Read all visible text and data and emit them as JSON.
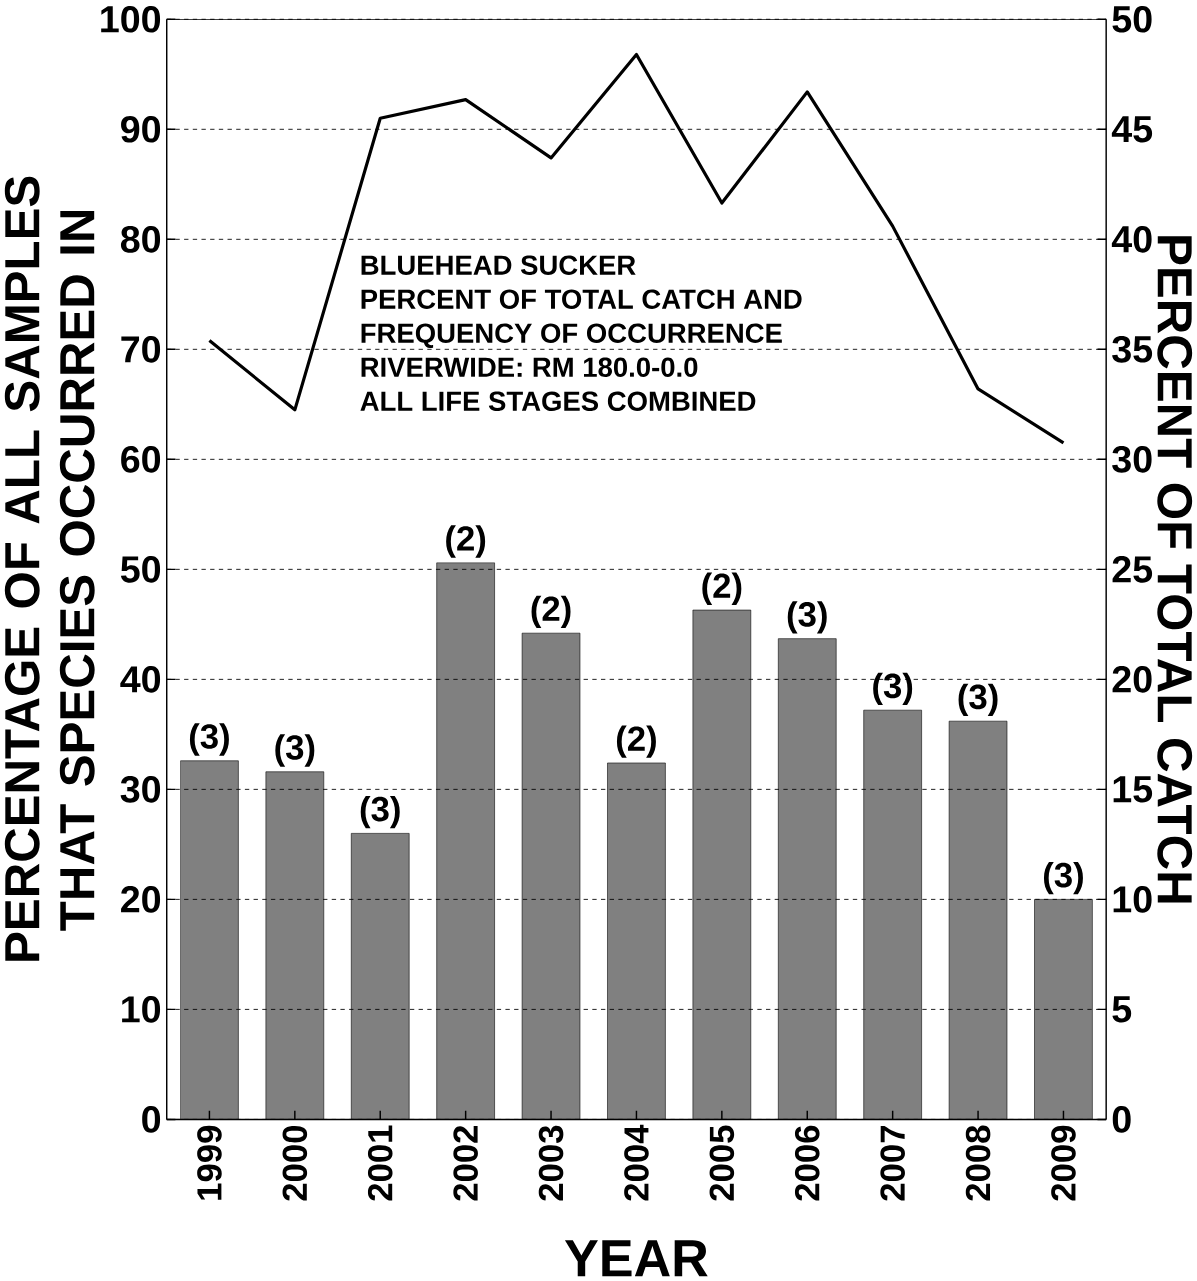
{
  "chart_data": {
    "type": "bar",
    "title": "BLUEHEAD SUCKER",
    "annotations": [
      "PERCENT OF TOTAL CATCH AND",
      "FREQUENCY OF OCCURRENCE",
      "RIVERWIDE:  RM 180.0-0.0",
      "ALL LIFE STAGES COMBINED",
      {
        "text": "(3)",
        "x": "1999",
        "y": 32.6
      },
      {
        "text": "(3)",
        "x": "2000",
        "y": 31.6
      },
      {
        "text": "(3)",
        "x": "2001",
        "y": 26.0
      },
      {
        "text": "(2)",
        "x": "2002",
        "y": 50.6
      },
      {
        "text": "(2)",
        "x": "2003",
        "y": 44.2
      },
      {
        "text": "(2)",
        "x": "2004",
        "y": 32.4
      },
      {
        "text": "(2)",
        "x": "2005",
        "y": 46.3
      },
      {
        "text": "(3)",
        "x": "2006",
        "y": 43.7
      },
      {
        "text": "(3)",
        "x": "2007",
        "y": 37.2
      },
      {
        "text": "(3)",
        "x": "2008",
        "y": 36.2
      },
      {
        "text": "(3)",
        "x": "2009",
        "y": 20.0
      }
    ],
    "xlabel": "YEAR",
    "ylabel": "PERCENTAGE OF ALL SAMPLES THAT SPECIES OCCURRED IN",
    "y2label": "PERCENT OF TOTAL CATCH",
    "categories": [
      "1999",
      "2000",
      "2001",
      "2002",
      "2003",
      "2004",
      "2005",
      "2006",
      "2007",
      "2008",
      "2009"
    ],
    "series": [
      {
        "axis": "y2",
        "color": "#808080",
        "values": [
          16.3,
          15.8,
          13.0,
          25.3,
          22.1,
          16.2,
          23.15,
          21.85,
          18.6,
          18.1,
          10.0
        ]
      },
      {
        "type": "line",
        "axis": "y",
        "color": "#000000",
        "values": [
          70.8,
          64.5,
          91,
          92.7,
          87.4,
          96.8,
          83.3,
          93.4,
          81.2,
          66.4,
          61.5
        ]
      }
    ],
    "ylim": [
      0,
      100
    ],
    "yticks": [
      0,
      10,
      20,
      30,
      40,
      50,
      60,
      70,
      80,
      90,
      100
    ],
    "y2lim": [
      0,
      50
    ],
    "y2ticks": [
      0,
      5,
      10,
      15,
      20,
      25,
      30,
      35,
      40,
      45,
      50
    ],
    "grid": "y"
  }
}
